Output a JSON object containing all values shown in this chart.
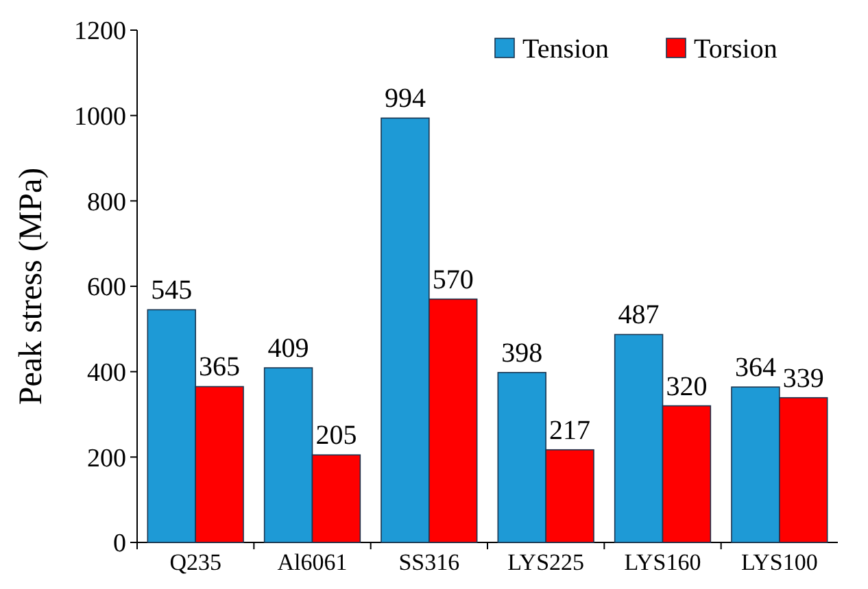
{
  "chart_data": {
    "type": "bar",
    "ylabel": "Peak stress (MPa)",
    "categories": [
      "Q235",
      "Al6061",
      "SS316",
      "LYS225",
      "LYS160",
      "LYS100"
    ],
    "series": [
      {
        "name": "Tension",
        "color": "#1e9ad6",
        "values": [
          545,
          409,
          994,
          398,
          487,
          364
        ]
      },
      {
        "name": "Torsion",
        "color": "#ff0000",
        "values": [
          365,
          205,
          570,
          217,
          320,
          339
        ]
      }
    ],
    "ylim": [
      0,
      1200
    ],
    "yticks": [
      0,
      200,
      400,
      600,
      800,
      1000,
      1200
    ],
    "data_labels": true,
    "legend": "top right",
    "grid": false
  }
}
